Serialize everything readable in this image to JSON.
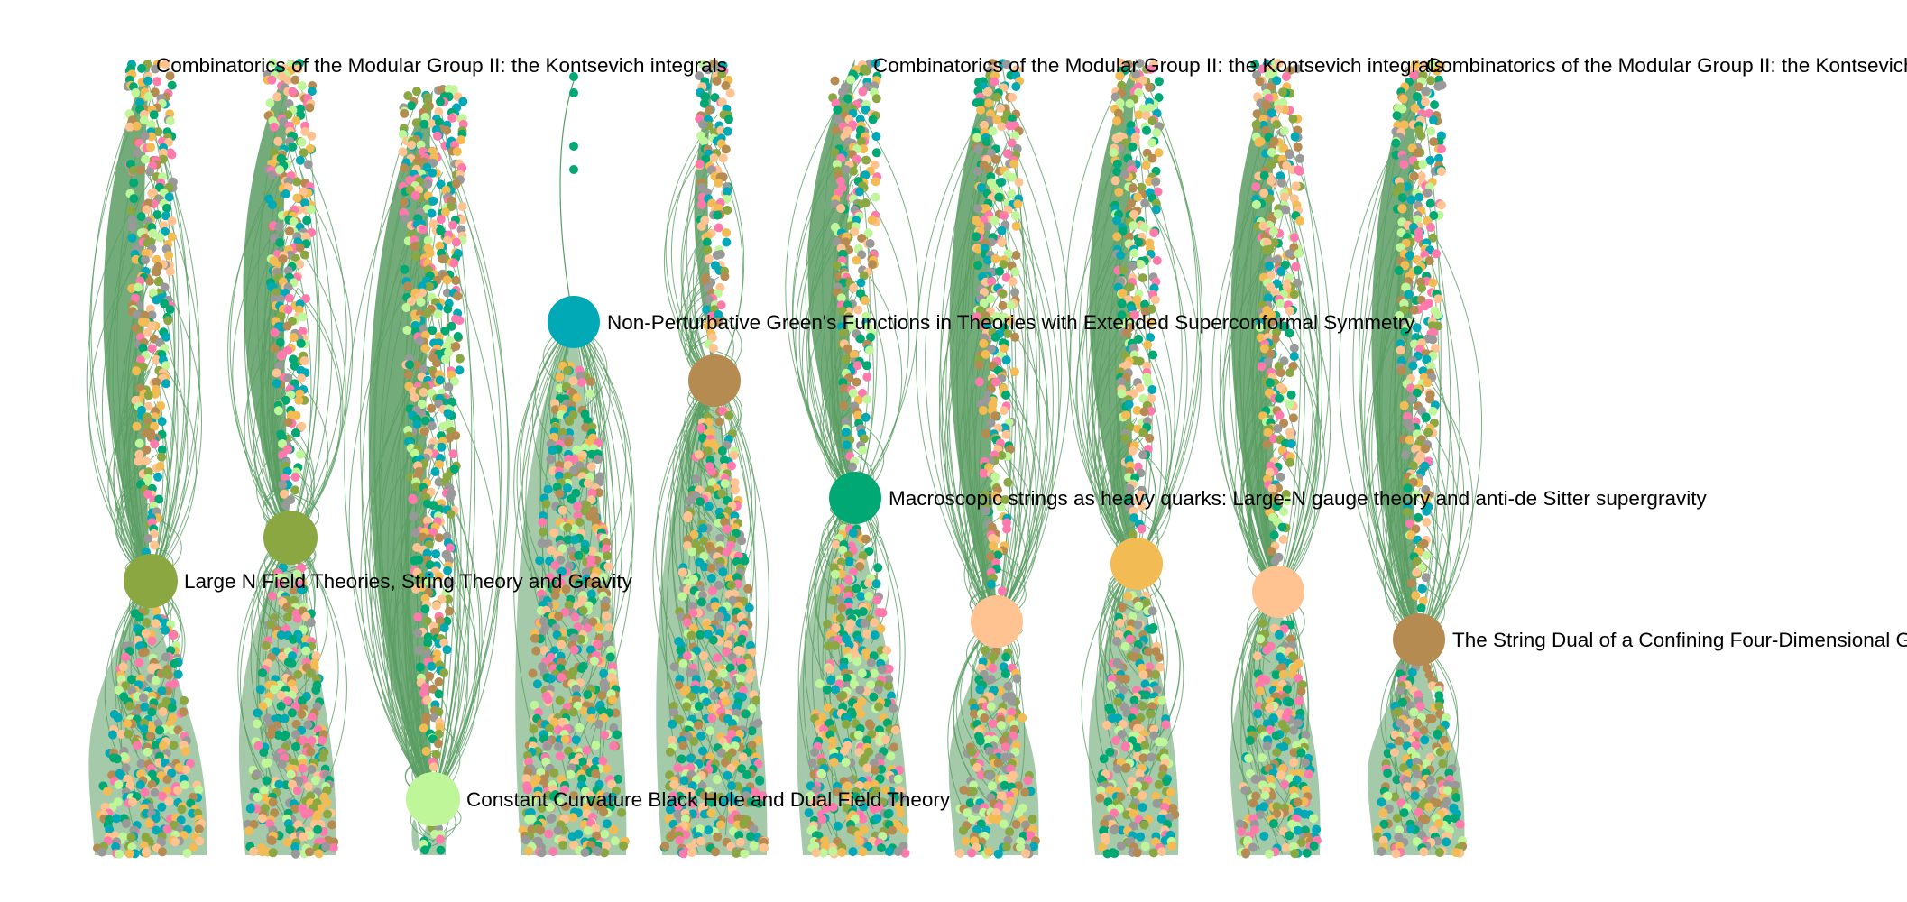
{
  "palette": [
    "#00a9b5",
    "#00a874",
    "#f3bb53",
    "#fe7aac",
    "#8aa741",
    "#999999",
    "#bff69a",
    "#b58b52",
    "#ffc392"
  ],
  "edge_color": "#5a9e63",
  "columns": [
    {
      "hub_label": "Large N Field Theories, String Theory and Gravity",
      "hub_color": "#8aa741"
    },
    {
      "hub_label": "",
      "hub_color": "#8aa741"
    },
    {
      "hub_label": "Constant Curvature Black Hole and Dual Field Theory",
      "hub_color": "#bff69a"
    },
    {
      "hub_label": "Non-Perturbative Green's Functions in Theories with Extended Superconformal Symmetry",
      "hub_color": "#00a9b5"
    },
    {
      "hub_label": "",
      "hub_color": "#b58b52"
    },
    {
      "hub_label": "Macroscopic strings as heavy quarks: Large-N gauge theory and anti-de Sitter supergravity",
      "hub_color": "#00a874"
    },
    {
      "hub_label": "",
      "hub_color": "#ffc392"
    },
    {
      "hub_label": "",
      "hub_color": "#f3bb53"
    },
    {
      "hub_label": "",
      "hub_color": "#ffc392"
    },
    {
      "hub_label": "The String Dual of a Confining Four-Dimensional Gauge Theory",
      "hub_color": "#b58b52"
    }
  ],
  "top_labels": [
    {
      "column": 0,
      "text": "Combinatorics of the Modular Group II: the Kontsevich integrals"
    },
    {
      "column": 5,
      "text": "Combinatorics of the Modular Group II: the Kontsevich integrals"
    },
    {
      "column": 9,
      "text": "Combinatorics of the Modular Group II: the Kontsevich integrals"
    }
  ]
}
